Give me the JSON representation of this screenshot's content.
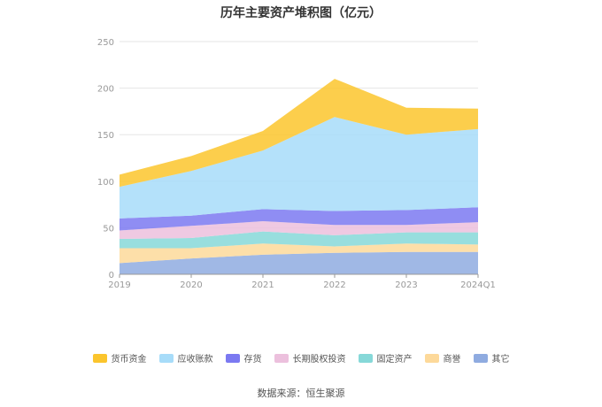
{
  "title": "历年主要资产堆积图（亿元）",
  "source": "数据来源：恒生聚源",
  "chart_data": {
    "type": "area",
    "stacked": true,
    "categories": [
      "2019",
      "2020",
      "2021",
      "2022",
      "2023",
      "2024Q1"
    ],
    "ylim": [
      0,
      250
    ],
    "yticks": [
      0,
      50,
      100,
      150,
      200,
      250
    ],
    "grid": true,
    "legend_position": "bottom",
    "series": [
      {
        "name": "其它",
        "color": "#8fabe0",
        "values": [
          12,
          17,
          21,
          23,
          24,
          24
        ]
      },
      {
        "name": "商誉",
        "color": "#fdd99a",
        "values": [
          16,
          11,
          12,
          7,
          9,
          8
        ]
      },
      {
        "name": "固定资产",
        "color": "#86d8d8",
        "values": [
          10,
          11,
          13,
          12,
          12,
          13
        ]
      },
      {
        "name": "长期股权投资",
        "color": "#ecc0dd",
        "values": [
          9,
          13,
          11,
          11,
          8,
          11
        ]
      },
      {
        "name": "存货",
        "color": "#7b79f1",
        "values": [
          13,
          11,
          13,
          15,
          16,
          16
        ]
      },
      {
        "name": "应收账款",
        "color": "#a7dcf9",
        "values": [
          34,
          48,
          63,
          101,
          81,
          84
        ]
      },
      {
        "name": "货币资金",
        "color": "#fbc52d",
        "values": [
          13,
          16,
          21,
          41,
          29,
          22
        ]
      }
    ]
  }
}
